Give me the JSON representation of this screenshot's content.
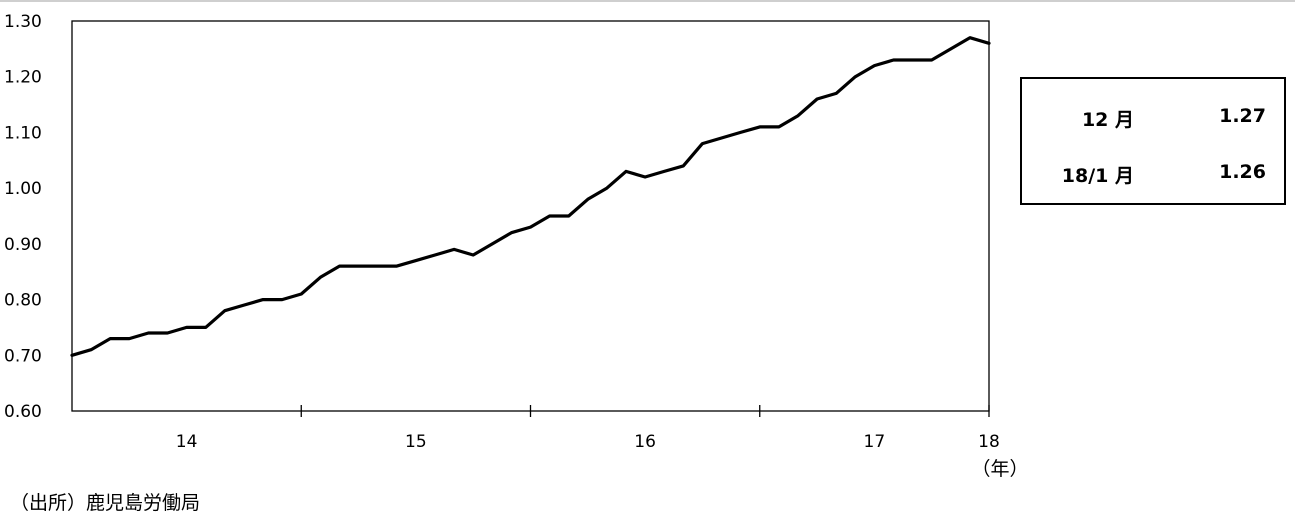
{
  "chart_data": {
    "type": "line",
    "y_ticks": [
      "1.30",
      "1.20",
      "1.10",
      "1.00",
      "0.90",
      "0.80",
      "0.70",
      "0.60"
    ],
    "ylim": [
      0.6,
      1.3
    ],
    "x_ticks": [
      "14",
      "15",
      "16",
      "17",
      "18"
    ],
    "x_unit": "（年）",
    "grid": false,
    "legend": "none",
    "line_color": "#000000",
    "series": [
      {
        "values": [
          0.7,
          0.71,
          0.73,
          0.73,
          0.74,
          0.74,
          0.75,
          0.75,
          0.78,
          0.79,
          0.8,
          0.8,
          0.81,
          0.84,
          0.86,
          0.86,
          0.86,
          0.86,
          0.87,
          0.88,
          0.89,
          0.88,
          0.9,
          0.92,
          0.93,
          0.95,
          0.95,
          0.98,
          1.0,
          1.03,
          1.02,
          1.03,
          1.04,
          1.08,
          1.09,
          1.1,
          1.11,
          1.11,
          1.13,
          1.16,
          1.17,
          1.2,
          1.22,
          1.23,
          1.23,
          1.23,
          1.25,
          1.27,
          1.26
        ]
      }
    ]
  },
  "value_box": {
    "rows": [
      {
        "label": "12 月",
        "value": "1.27"
      },
      {
        "label": "18/1 月",
        "value": "1.26"
      }
    ]
  },
  "source": "（出所）鹿児島労働局"
}
